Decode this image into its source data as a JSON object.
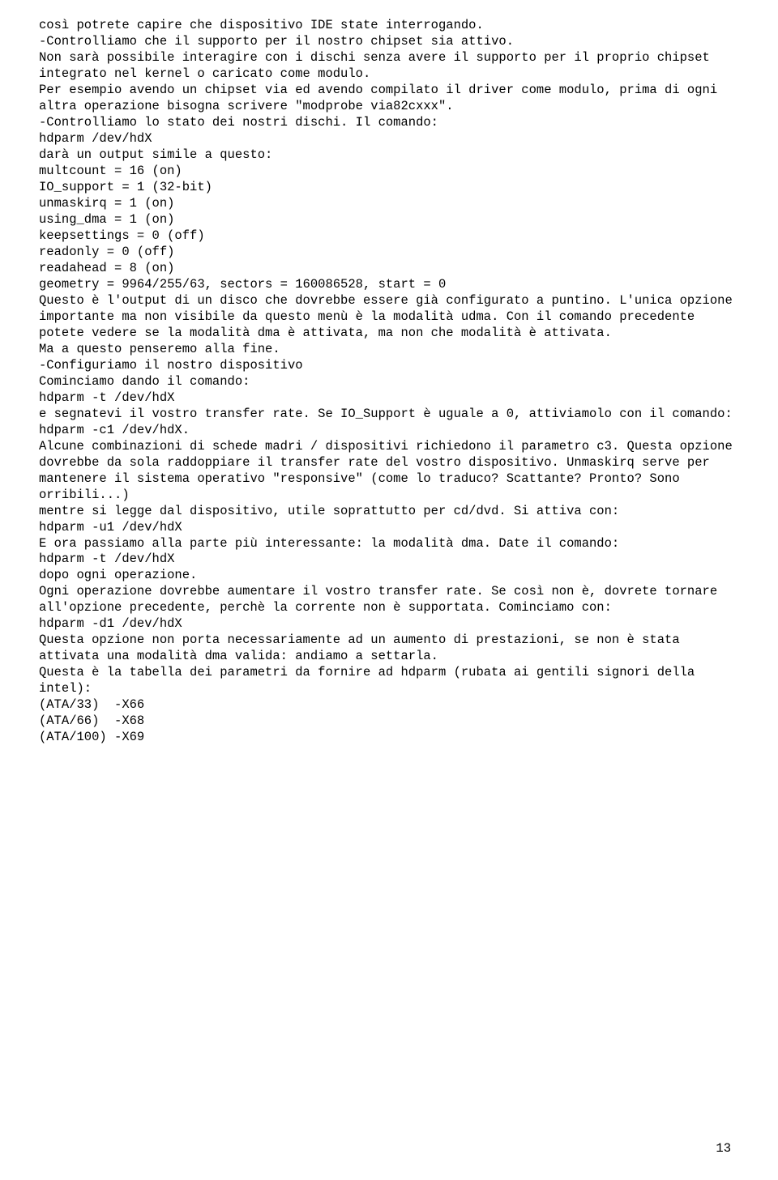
{
  "lines": [
    "così potrete capire che dispositivo IDE state interrogando.",
    "-Controlliamo che il supporto per il nostro chipset sia attivo.",
    "Non sarà possibile interagire con i dischi senza avere il supporto per il proprio chipset integrato nel kernel o caricato come modulo.",
    "Per esempio avendo un chipset via ed avendo compilato il driver come modulo, prima di ogni altra operazione bisogna scrivere \"modprobe via82cxxx\".",
    "-Controlliamo lo stato dei nostri dischi. Il comando:",
    "hdparm /dev/hdX",
    "darà un output simile a questo:",
    "multcount = 16 (on)",
    "IO_support = 1 (32-bit)",
    "unmaskirq = 1 (on)",
    "using_dma = 1 (on)",
    "keepsettings = 0 (off)",
    "readonly = 0 (off)",
    "readahead = 8 (on)",
    "geometry = 9964/255/63, sectors = 160086528, start = 0",
    "Questo è l'output di un disco che dovrebbe essere già configurato a puntino. L'unica opzione",
    "importante ma non visibile da questo menù è la modalità udma. Con il comando precedente potete vedere se la modalità dma è attivata, ma non che modalità è attivata.",
    "Ma a questo penseremo alla fine.",
    "-Configuriamo il nostro dispositivo",
    "Cominciamo dando il comando:",
    "hdparm -t /dev/hdX",
    "e segnatevi il vostro transfer rate. Se IO_Support è uguale a 0, attiviamolo con il comando:",
    "hdparm -c1 /dev/hdX.",
    "Alcune combinazioni di schede madri / dispositivi richiedono il parametro c3. Questa opzione",
    "dovrebbe da sola raddoppiare il transfer rate del vostro dispositivo. Unmaskirq serve per",
    "mantenere il sistema operativo \"responsive\" (come lo traduco? Scattante? Pronto? Sono orribili...)",
    "mentre si legge dal dispositivo, utile soprattutto per cd/dvd. Si attiva con:",
    "hdparm -u1 /dev/hdX",
    "E ora passiamo alla parte più interessante: la modalità dma. Date il comando:",
    "hdparm -t /dev/hdX",
    "dopo ogni operazione.",
    "Ogni operazione dovrebbe aumentare il vostro transfer rate. Se così non è, dovrete tornare all'opzione precedente, perchè la corrente non è supportata. Cominciamo con:",
    "hdparm -d1 /dev/hdX",
    "Questa opzione non porta necessariamente ad un aumento di prestazioni, se non è stata attivata una modalità dma valida: andiamo a settarla.",
    "Questa è la tabella dei parametri da fornire ad hdparm (rubata ai gentili signori della intel):",
    "(ATA/33)  -X66",
    "(ATA/66)  -X68",
    "(ATA/100) -X69"
  ],
  "pageNumber": "13"
}
